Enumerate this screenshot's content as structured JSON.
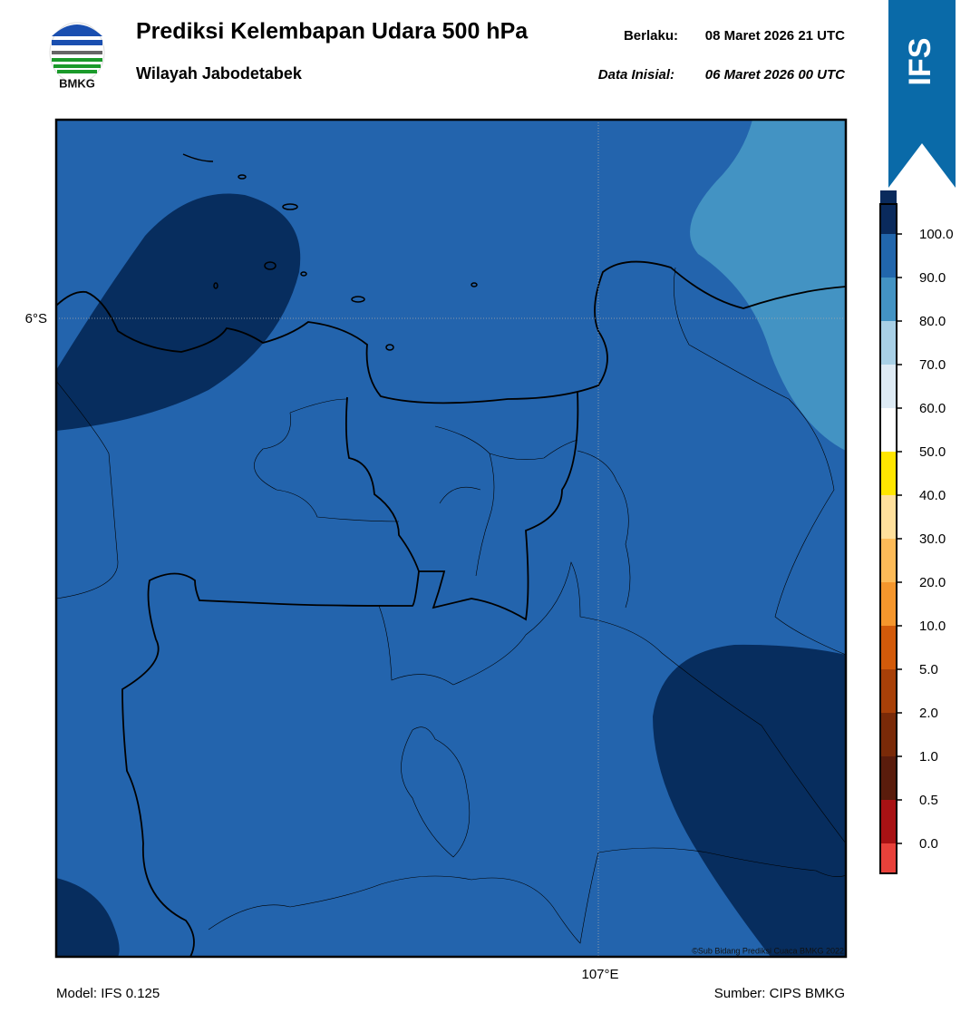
{
  "header": {
    "title": "Prediksi Kelembapan Udara 500 hPa",
    "subtitle": "Wilayah Jabodetabek",
    "valid_label": "Berlaku:",
    "valid": "08 Maret 2026 21 UTC",
    "init_label": "Data Inisial:",
    "init": "06 Maret 2026 00 UTC"
  },
  "logo": "BMKG",
  "badge": "IFS",
  "map": {
    "lat_label": "6°S",
    "lon_label": "107°E",
    "credit": "©Sub Bidang Prediksi Cuaca BMKG 2022"
  },
  "colorbar": {
    "colors": [
      "#e8413a",
      "#a81214",
      "#5a1c0c",
      "#7a2a08",
      "#a84008",
      "#d25a0a",
      "#f5962c",
      "#fdbb58",
      "#ffe09c",
      "#ffe600",
      "#ffffff",
      "#deebf5",
      "#a8d0e6",
      "#4393c3",
      "#2166ac",
      "#0a2a5c",
      "#2a0a52"
    ],
    "ticks": [
      {
        "value": 0,
        "label": "0.0"
      },
      {
        "value": 0.5,
        "label": "0.5"
      },
      {
        "value": 1,
        "label": "1.0"
      },
      {
        "value": 2,
        "label": "2.0"
      },
      {
        "value": 5,
        "label": "5.0"
      },
      {
        "value": 10,
        "label": "10.0"
      },
      {
        "value": 20,
        "label": "20.0"
      },
      {
        "value": 30,
        "label": "30.0"
      },
      {
        "value": 40,
        "label": "40.0"
      },
      {
        "value": 50,
        "label": "50.0"
      },
      {
        "value": 60,
        "label": "60.0"
      },
      {
        "value": 70,
        "label": "70.0"
      },
      {
        "value": 80,
        "label": "80.0"
      },
      {
        "value": 90,
        "label": "90.0"
      },
      {
        "value": 100,
        "label": "100.0"
      }
    ]
  },
  "footer": {
    "model": "Model: IFS 0.125",
    "source": "Sumber: CIPS BMKG"
  }
}
